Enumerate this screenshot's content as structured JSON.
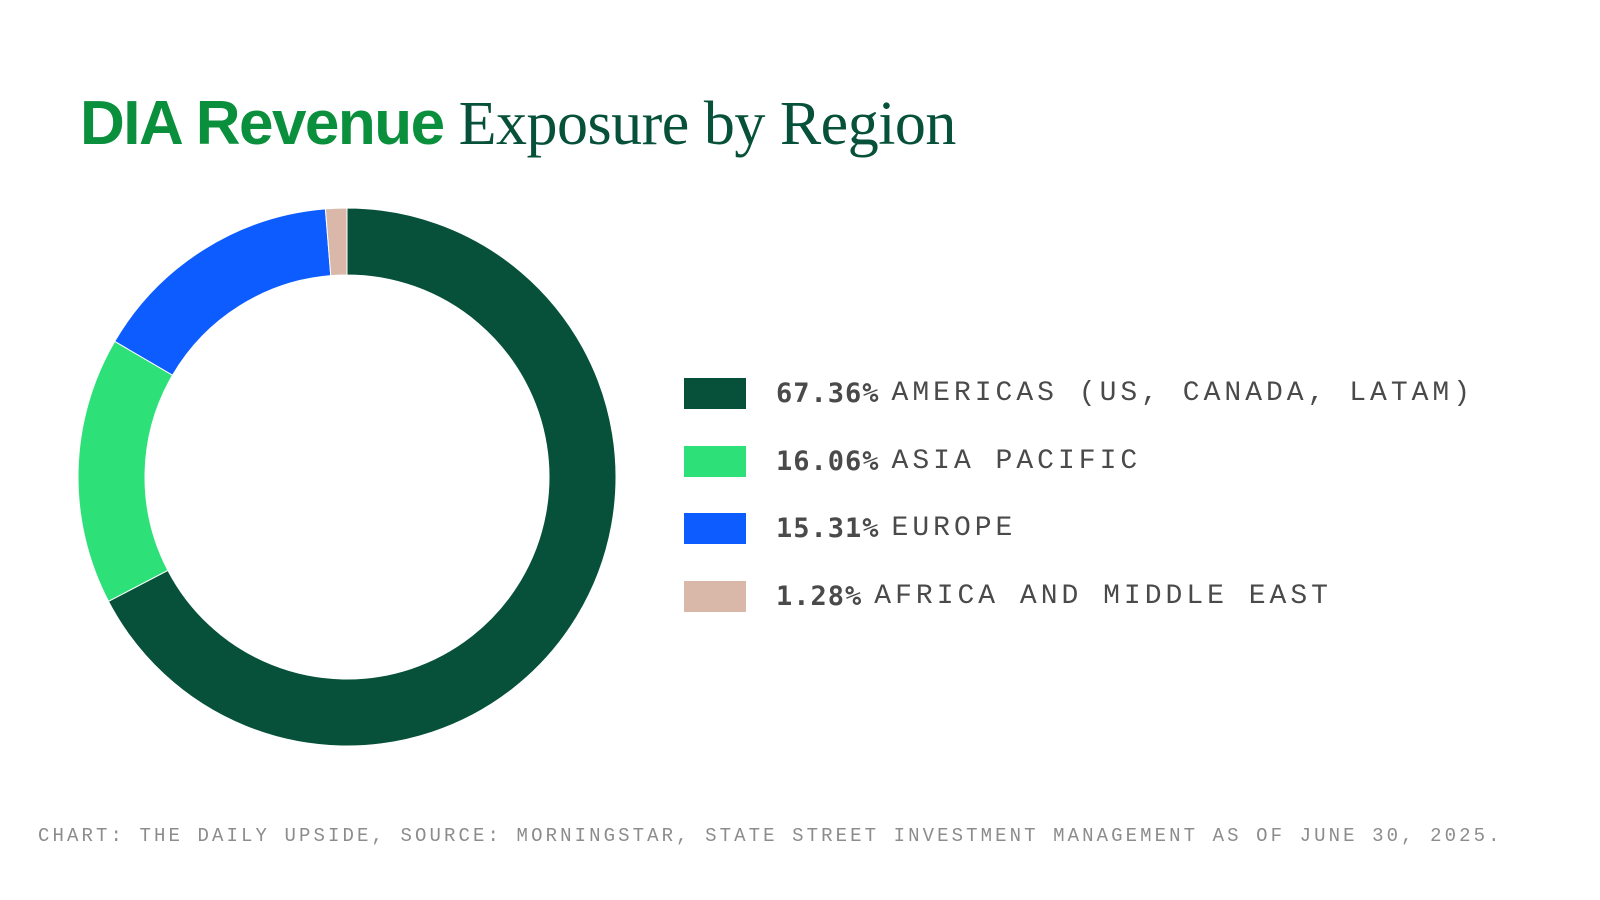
{
  "title": {
    "bold_part": "DIA Revenue",
    "serif_part": "Exposure by Region"
  },
  "legend": [
    {
      "value": "67.36%",
      "label": "AMERICAS (US, CANADA, LATAM)",
      "color": "#07513a"
    },
    {
      "value": "16.06%",
      "label": "ASIA PACIFIC",
      "color": "#2ee078"
    },
    {
      "value": "15.31%",
      "label": "EUROPE",
      "color": "#0d5cff"
    },
    {
      "value": "1.28%",
      "label": "AFRICA AND MIDDLE EAST",
      "color": "#d9b8aa"
    }
  ],
  "source": "CHART: THE DAILY UPSIDE, SOURCE: MORNINGSTAR, STATE STREET INVESTMENT MANAGEMENT AS OF JUNE 30, 2025.",
  "chart_data": {
    "type": "pie",
    "subtype": "donut",
    "title": "DIA Revenue Exposure by Region",
    "categories": [
      "Americas (US, Canada, LATAM)",
      "Asia Pacific",
      "Europe",
      "Africa and Middle East"
    ],
    "values": [
      67.36,
      16.06,
      15.31,
      1.28
    ],
    "unit": "%",
    "colors": [
      "#07513a",
      "#2ee078",
      "#0d5cff",
      "#d9b8aa"
    ],
    "start_angle": "12 o'clock",
    "direction": "clockwise",
    "legend_position": "right",
    "annotations": [
      "CHART: THE DAILY UPSIDE, SOURCE: MORNINGSTAR, STATE STREET INVESTMENT MANAGEMENT AS OF JUNE 30, 2025."
    ]
  }
}
